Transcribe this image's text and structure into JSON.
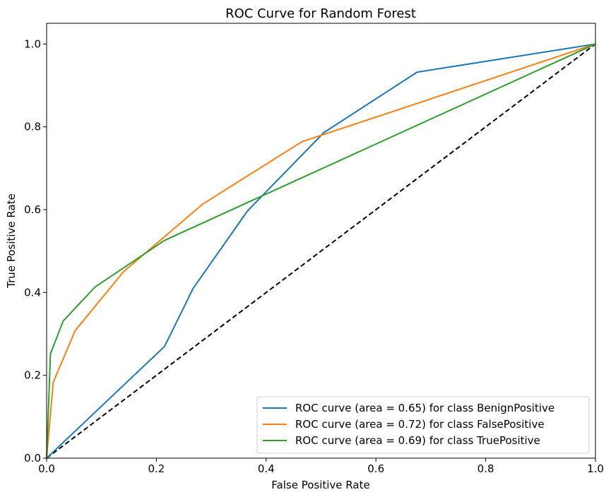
{
  "chart_data": {
    "type": "line",
    "title": "ROC Curve for Random Forest",
    "xlabel": "False Positive Rate",
    "ylabel": "True Positive Rate",
    "xlim": [
      0.0,
      1.0
    ],
    "ylim": [
      0.0,
      1.05
    ],
    "xticks": [
      "0.0",
      "0.2",
      "0.4",
      "0.6",
      "0.8",
      "1.0"
    ],
    "yticks": [
      "0.0",
      "0.2",
      "0.4",
      "0.6",
      "0.8",
      "1.0"
    ],
    "xtick_values": [
      0.0,
      0.2,
      0.4,
      0.6,
      0.8,
      1.0
    ],
    "ytick_values": [
      0.0,
      0.2,
      0.4,
      0.6,
      0.8,
      1.0
    ],
    "grid": false,
    "legend_position": "lower-right",
    "series": [
      {
        "name": "ROC curve (area = 0.65) for class BenignPositive",
        "color": "#1f77b4",
        "x": [
          0.0,
          0.215,
          0.267,
          0.366,
          0.505,
          0.675,
          1.0
        ],
        "y": [
          0.0,
          0.27,
          0.41,
          0.597,
          0.786,
          0.932,
          1.0
        ]
      },
      {
        "name": "ROC curve (area = 0.72) for class FalsePositive",
        "color": "#ff7f0e",
        "x": [
          0.0,
          0.012,
          0.052,
          0.14,
          0.285,
          0.465,
          1.0
        ],
        "y": [
          0.0,
          0.183,
          0.308,
          0.45,
          0.614,
          0.764,
          1.0
        ]
      },
      {
        "name": "ROC curve (area = 0.69) for class TruePositive",
        "color": "#2ca02c",
        "x": [
          0.0,
          0.007,
          0.03,
          0.088,
          0.215,
          1.0
        ],
        "y": [
          0.0,
          0.252,
          0.331,
          0.413,
          0.526,
          1.0
        ]
      }
    ],
    "reference_line": {
      "style": "dashed",
      "color": "#000000",
      "x": [
        0.0,
        1.0
      ],
      "y": [
        0.0,
        1.0
      ]
    }
  }
}
